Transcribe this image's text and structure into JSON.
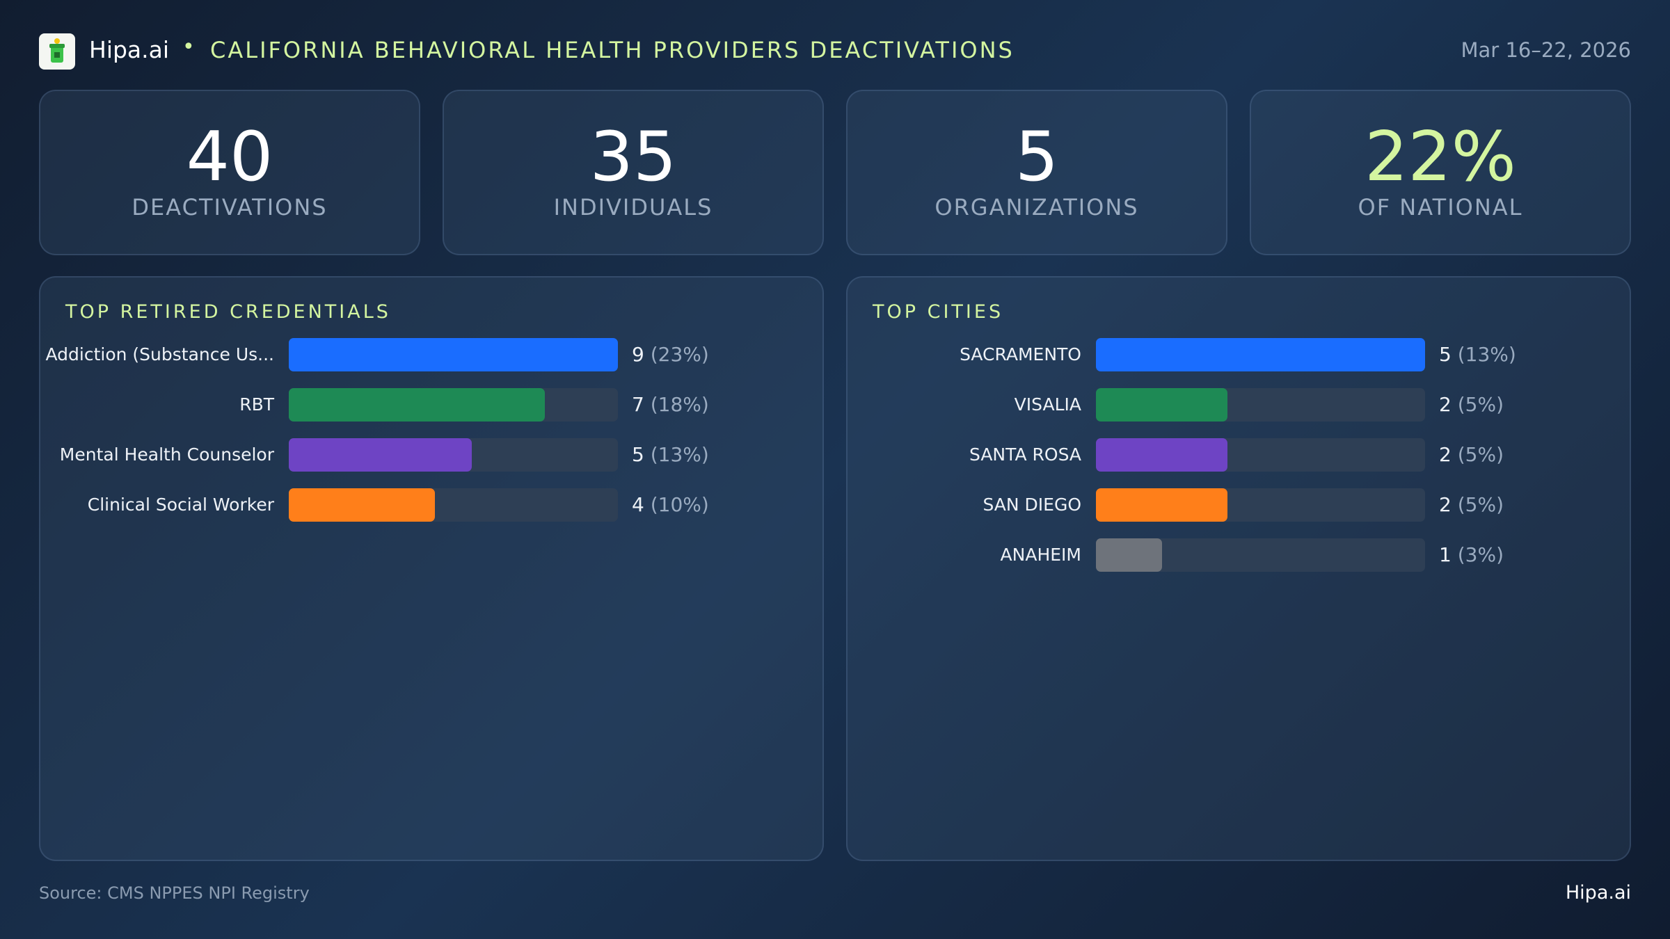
{
  "header": {
    "brand": "Hipa.ai",
    "title": "CALIFORNIA BEHAVIORAL HEALTH PROVIDERS DEACTIVATIONS",
    "date": "Mar 16–22, 2026"
  },
  "kpis": [
    {
      "value": "40",
      "label": "DEACTIVATIONS"
    },
    {
      "value": "35",
      "label": "INDIVIDUALS"
    },
    {
      "value": "5",
      "label": "ORGANIZATIONS"
    },
    {
      "value": "22%",
      "label": "OF NATIONAL",
      "color": "#d4f5a0"
    }
  ],
  "chart_data": [
    {
      "type": "bar",
      "title": "TOP RETIRED CREDENTIALS",
      "categories": [
        "Addiction (Substance Us...",
        "RBT",
        "Mental Health Counselor",
        "Clinical Social Worker"
      ],
      "values": [
        9,
        7,
        5,
        4
      ],
      "share_labels": [
        "(23%)",
        "(18%)",
        "(13%)",
        "(10%)"
      ],
      "colors": [
        "#1a6dff",
        "#1e8a55",
        "#6e44c4",
        "#ff7f1a"
      ],
      "xlim": [
        0,
        9
      ]
    },
    {
      "type": "bar",
      "title": "TOP CITIES",
      "categories": [
        "SACRAMENTO",
        "VISALIA",
        "SANTA ROSA",
        "SAN DIEGO",
        "ANAHEIM"
      ],
      "values": [
        5,
        2,
        2,
        2,
        1
      ],
      "share_labels": [
        "(13%)",
        "(5%)",
        "(5%)",
        "(5%)",
        "(3%)"
      ],
      "colors": [
        "#1a6dff",
        "#1e8a55",
        "#6e44c4",
        "#ff7f1a",
        "#6e737b"
      ],
      "xlim": [
        0,
        5
      ]
    }
  ],
  "footer": {
    "source": "Source: CMS NPPES NPI Registry"
  }
}
